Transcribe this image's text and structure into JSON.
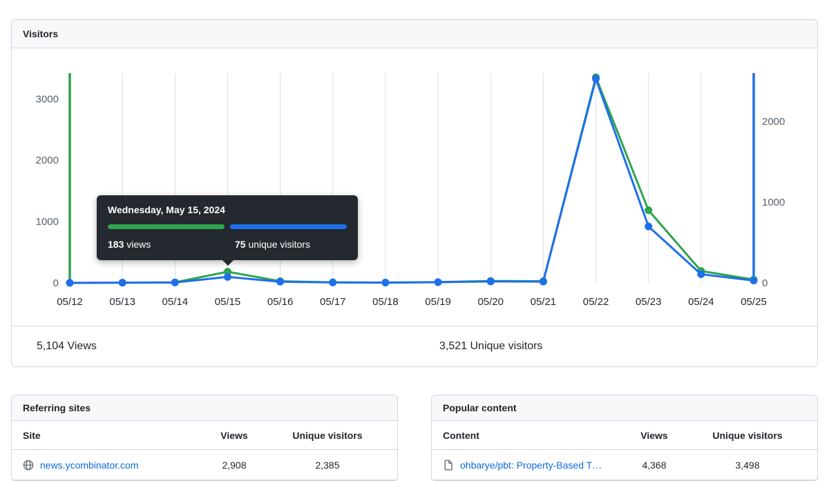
{
  "visitors_panel": {
    "title": "Visitors",
    "views_total": "5,104 Views",
    "unique_total": "3,521 Unique visitors"
  },
  "tooltip": {
    "title": "Wednesday, May 15, 2024",
    "views_value": "183",
    "views_label": " views",
    "unique_value": "75",
    "unique_label": " unique visitors"
  },
  "chart_data": {
    "type": "line",
    "title": "Visitors",
    "categories": [
      "05/12",
      "05/13",
      "05/14",
      "05/15",
      "05/16",
      "05/17",
      "05/18",
      "05/19",
      "05/20",
      "05/21",
      "05/22",
      "05/23",
      "05/24",
      "05/25"
    ],
    "series": [
      {
        "name": "Views",
        "axis": "left",
        "color": "#2da44e",
        "values": [
          1,
          4,
          9,
          183,
          28,
          10,
          6,
          14,
          33,
          28,
          3353,
          1185,
          195,
          55
        ]
      },
      {
        "name": "Unique visitors",
        "axis": "right",
        "color": "#1f6feb",
        "values": [
          1,
          3,
          6,
          75,
          15,
          6,
          4,
          9,
          18,
          16,
          2530,
          700,
          108,
          30
        ]
      }
    ],
    "left_axis": {
      "ticks": [
        0,
        1000,
        2000,
        3000
      ],
      "max": 3420
    },
    "right_axis": {
      "ticks": [
        0,
        1000,
        2000
      ],
      "max": 2600
    },
    "grid": "vertical",
    "legend_position": "tooltip"
  },
  "referring_sites": {
    "title": "Referring sites",
    "columns": {
      "main": "Site",
      "views": "Views",
      "unique": "Unique visitors"
    },
    "rows": [
      {
        "site": "news.ycombinator.com",
        "views": "2,908",
        "unique": "2,385"
      }
    ]
  },
  "popular_content": {
    "title": "Popular content",
    "columns": {
      "main": "Content",
      "views": "Views",
      "unique": "Unique visitors"
    },
    "rows": [
      {
        "content": "ohbarye/pbt: Property-Based T…",
        "views": "4,368",
        "unique": "3,498"
      }
    ]
  },
  "icons": {
    "globe-icon": "globe glyph for referring site",
    "file-icon": "document glyph for content row"
  },
  "colors": {
    "views_green": "#2da44e",
    "unique_blue": "#1f6feb",
    "link_blue": "#0969da",
    "tooltip_bg": "#24292f",
    "panel_border": "#d0d7de",
    "header_bg": "#f6f8fa",
    "gridline": "#d8dee4"
  }
}
